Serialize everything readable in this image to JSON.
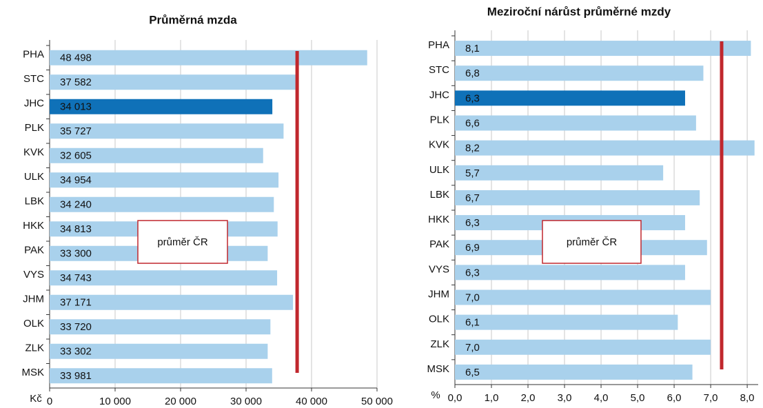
{
  "chart_data": [
    {
      "type": "bar",
      "orientation": "horizontal",
      "title": "Průměrná mzda",
      "x_label": "Kč",
      "categories": [
        "PHA",
        "STC",
        "JHC",
        "PLK",
        "KVK",
        "ULK",
        "LBK",
        "HKK",
        "PAK",
        "VYS",
        "JHM",
        "OLK",
        "ZLK",
        "MSK"
      ],
      "values": [
        48498,
        37582,
        34013,
        35727,
        32605,
        34954,
        34240,
        34813,
        33300,
        34743,
        37171,
        33720,
        33302,
        33981
      ],
      "value_labels": [
        "48 498",
        "37 582",
        "34 013",
        "35 727",
        "32 605",
        "34 954",
        "34 240",
        "34 813",
        "33 300",
        "34 743",
        "37 171",
        "33 720",
        "33 302",
        "33 981"
      ],
      "colors": [
        "#a9d1ec",
        "#a9d1ec",
        "#0f71b8",
        "#a9d1ec",
        "#a9d1ec",
        "#a9d1ec",
        "#a9d1ec",
        "#a9d1ec",
        "#a9d1ec",
        "#a9d1ec",
        "#a9d1ec",
        "#a9d1ec",
        "#a9d1ec",
        "#a9d1ec"
      ],
      "xlim": [
        0,
        50000
      ],
      "xticks": [
        0,
        {
          "value": 10000,
          "label": "10 000"
        },
        {
          "value": 20000,
          "label": "20 000"
        },
        {
          "value": 30000,
          "label": "30 000"
        },
        {
          "value": 40000,
          "label": "40 000"
        },
        {
          "value": 50000,
          "label": "50 000"
        }
      ],
      "grid": true,
      "reference": {
        "value": 37800,
        "label": "průměr ČR",
        "color": "#c0272d"
      }
    },
    {
      "type": "bar",
      "orientation": "horizontal",
      "title": "Meziroční nárůst průměrné mzdy",
      "x_label": "%",
      "categories": [
        "PHA",
        "STC",
        "JHC",
        "PLK",
        "KVK",
        "ULK",
        "LBK",
        "HKK",
        "PAK",
        "VYS",
        "JHM",
        "OLK",
        "ZLK",
        "MSK"
      ],
      "values": [
        8.1,
        6.8,
        6.3,
        6.6,
        8.2,
        5.7,
        6.7,
        6.3,
        6.9,
        6.3,
        7.0,
        6.1,
        7.0,
        6.5
      ],
      "value_labels": [
        "8,1",
        "6,8",
        "6,3",
        "6,6",
        "8,2",
        "5,7",
        "6,7",
        "6,3",
        "6,9",
        "6,3",
        "7,0",
        "6,1",
        "7,0",
        "6,5"
      ],
      "colors": [
        "#a9d1ec",
        "#a9d1ec",
        "#0f71b8",
        "#a9d1ec",
        "#a9d1ec",
        "#a9d1ec",
        "#a9d1ec",
        "#a9d1ec",
        "#a9d1ec",
        "#a9d1ec",
        "#a9d1ec",
        "#a9d1ec",
        "#a9d1ec",
        "#a9d1ec"
      ],
      "xlim": [
        0,
        8.3
      ],
      "xticks": [
        {
          "value": 0,
          "label": "0,0"
        },
        {
          "value": 1,
          "label": "1,0"
        },
        {
          "value": 2,
          "label": "2,0"
        },
        {
          "value": 3,
          "label": "3,0"
        },
        {
          "value": 4,
          "label": "4,0"
        },
        {
          "value": 5,
          "label": "5,0"
        },
        {
          "value": 6,
          "label": "6,0"
        },
        {
          "value": 7,
          "label": "7,0"
        },
        {
          "value": 8,
          "label": "8,0"
        }
      ],
      "grid": true,
      "reference": {
        "value": 7.3,
        "label": "průměr ČR",
        "color": "#c0272d"
      }
    }
  ]
}
